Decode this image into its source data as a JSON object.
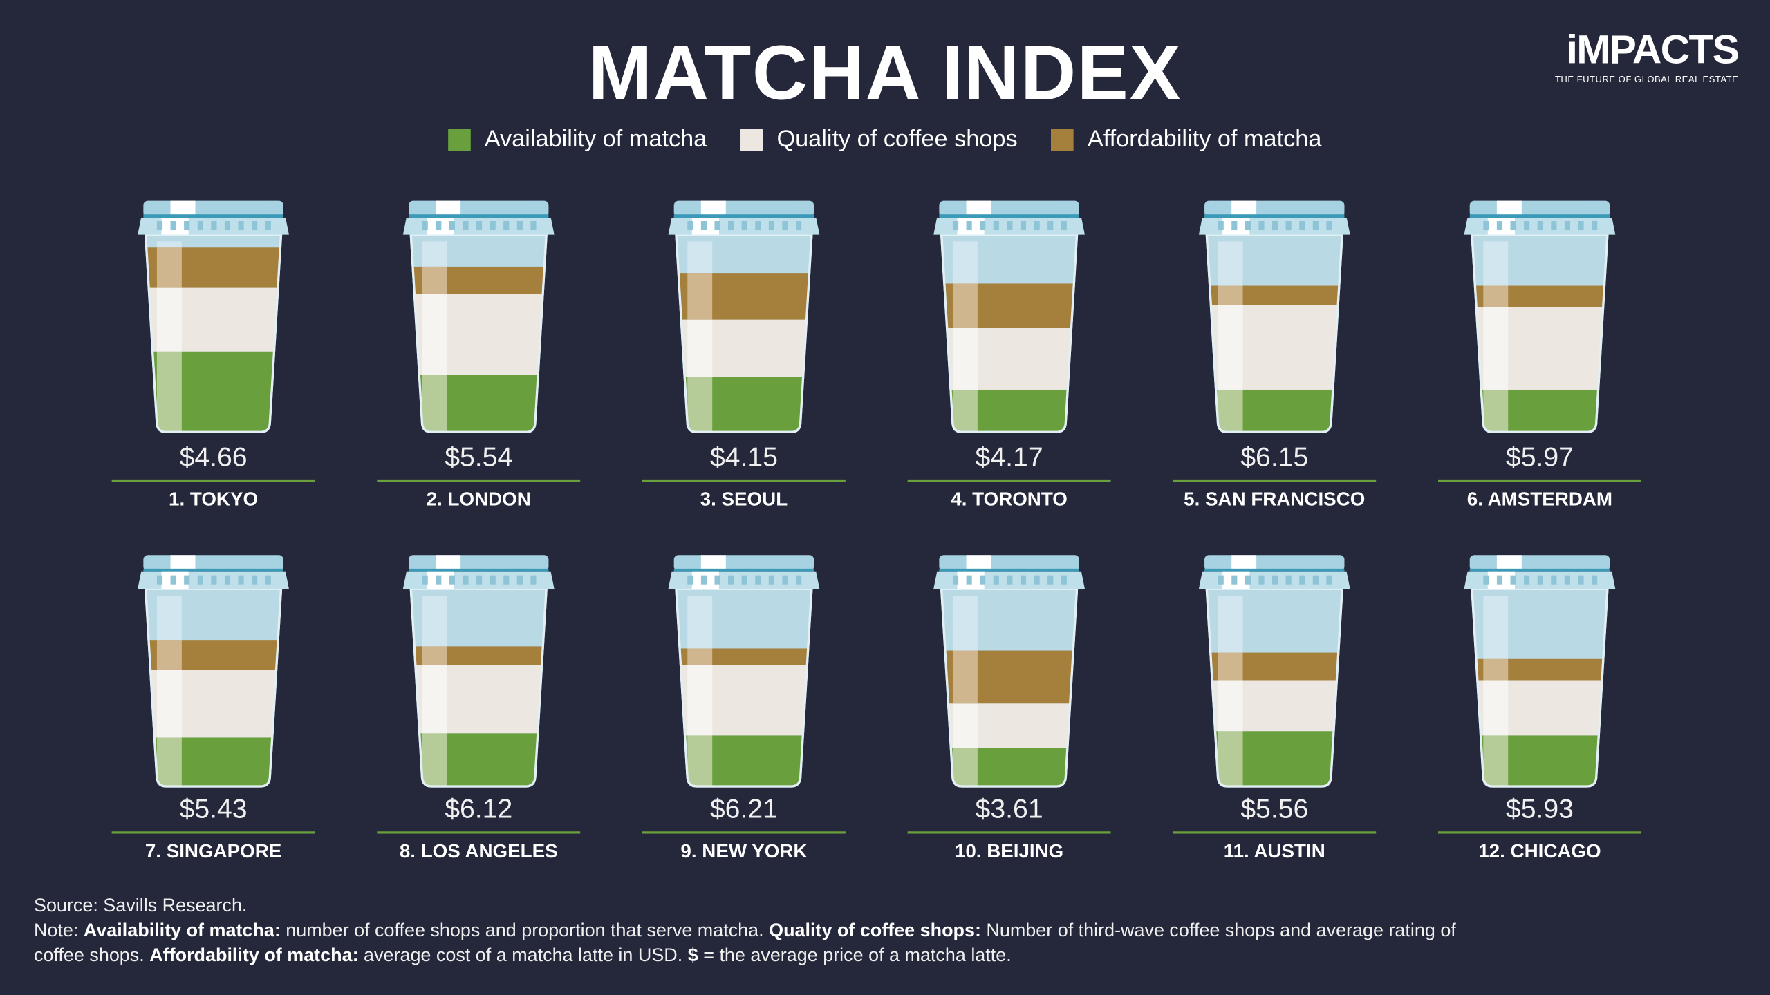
{
  "title": "MATCHA INDEX",
  "logo": {
    "name": "iMPACTS",
    "tagline": "THE FUTURE OF GLOBAL REAL ESTATE"
  },
  "colors": {
    "background": "#25283b",
    "availability": "#6a9f3d",
    "quality": "#ece8e1",
    "affordability": "#a57f3c",
    "cup": "#b9d9e5"
  },
  "chart_data": {
    "type": "bar",
    "stacked": true,
    "legend_placement": "top",
    "legend": [
      "Availability of matcha",
      "Quality of coffee shops",
      "Affordability of matcha"
    ],
    "categories": [
      "1. TOKYO",
      "2. LONDON",
      "3. SEOUL",
      "4. TORONTO",
      "5. SAN FRANCISCO",
      "6. AMSTERDAM",
      "7. SINGAPORE",
      "8. LOS ANGELES",
      "9. NEW YORK",
      "10. BEIJING",
      "11. AUSTIN",
      "12. CHICAGO"
    ],
    "prices": [
      "$4.66",
      "$5.54",
      "$4.15",
      "$4.17",
      "$6.15",
      "$5.97",
      "$5.43",
      "$6.12",
      "$6.21",
      "$3.61",
      "$5.56",
      "$5.93"
    ],
    "series": [
      {
        "name": "Availability of matcha",
        "values": [
          38,
          27,
          26,
          20,
          20,
          20,
          23,
          25,
          24,
          18,
          26,
          24
        ]
      },
      {
        "name": "Quality of coffee shops",
        "values": [
          30,
          38,
          27,
          29,
          40,
          39,
          32,
          32,
          33,
          21,
          24,
          26
        ]
      },
      {
        "name": "Affordability of matcha",
        "values": [
          19,
          13,
          22,
          21,
          9,
          10,
          14,
          9,
          8,
          25,
          13,
          10
        ]
      }
    ]
  },
  "footer": {
    "source": "Source: Savills Research.",
    "note_prefix": "Note: ",
    "t1": "Availability of matcha:",
    "d1": " number of coffee shops and proportion that serve matcha. ",
    "t2": "Quality of coffee shops:",
    "d2": " Number of third-wave coffee shops and average rating of coffee shops. ",
    "t3": "Affordability of matcha:",
    "d3": " average cost of a matcha latte in USD. ",
    "t4": "$",
    "d4": " = the average price of a matcha latte."
  }
}
